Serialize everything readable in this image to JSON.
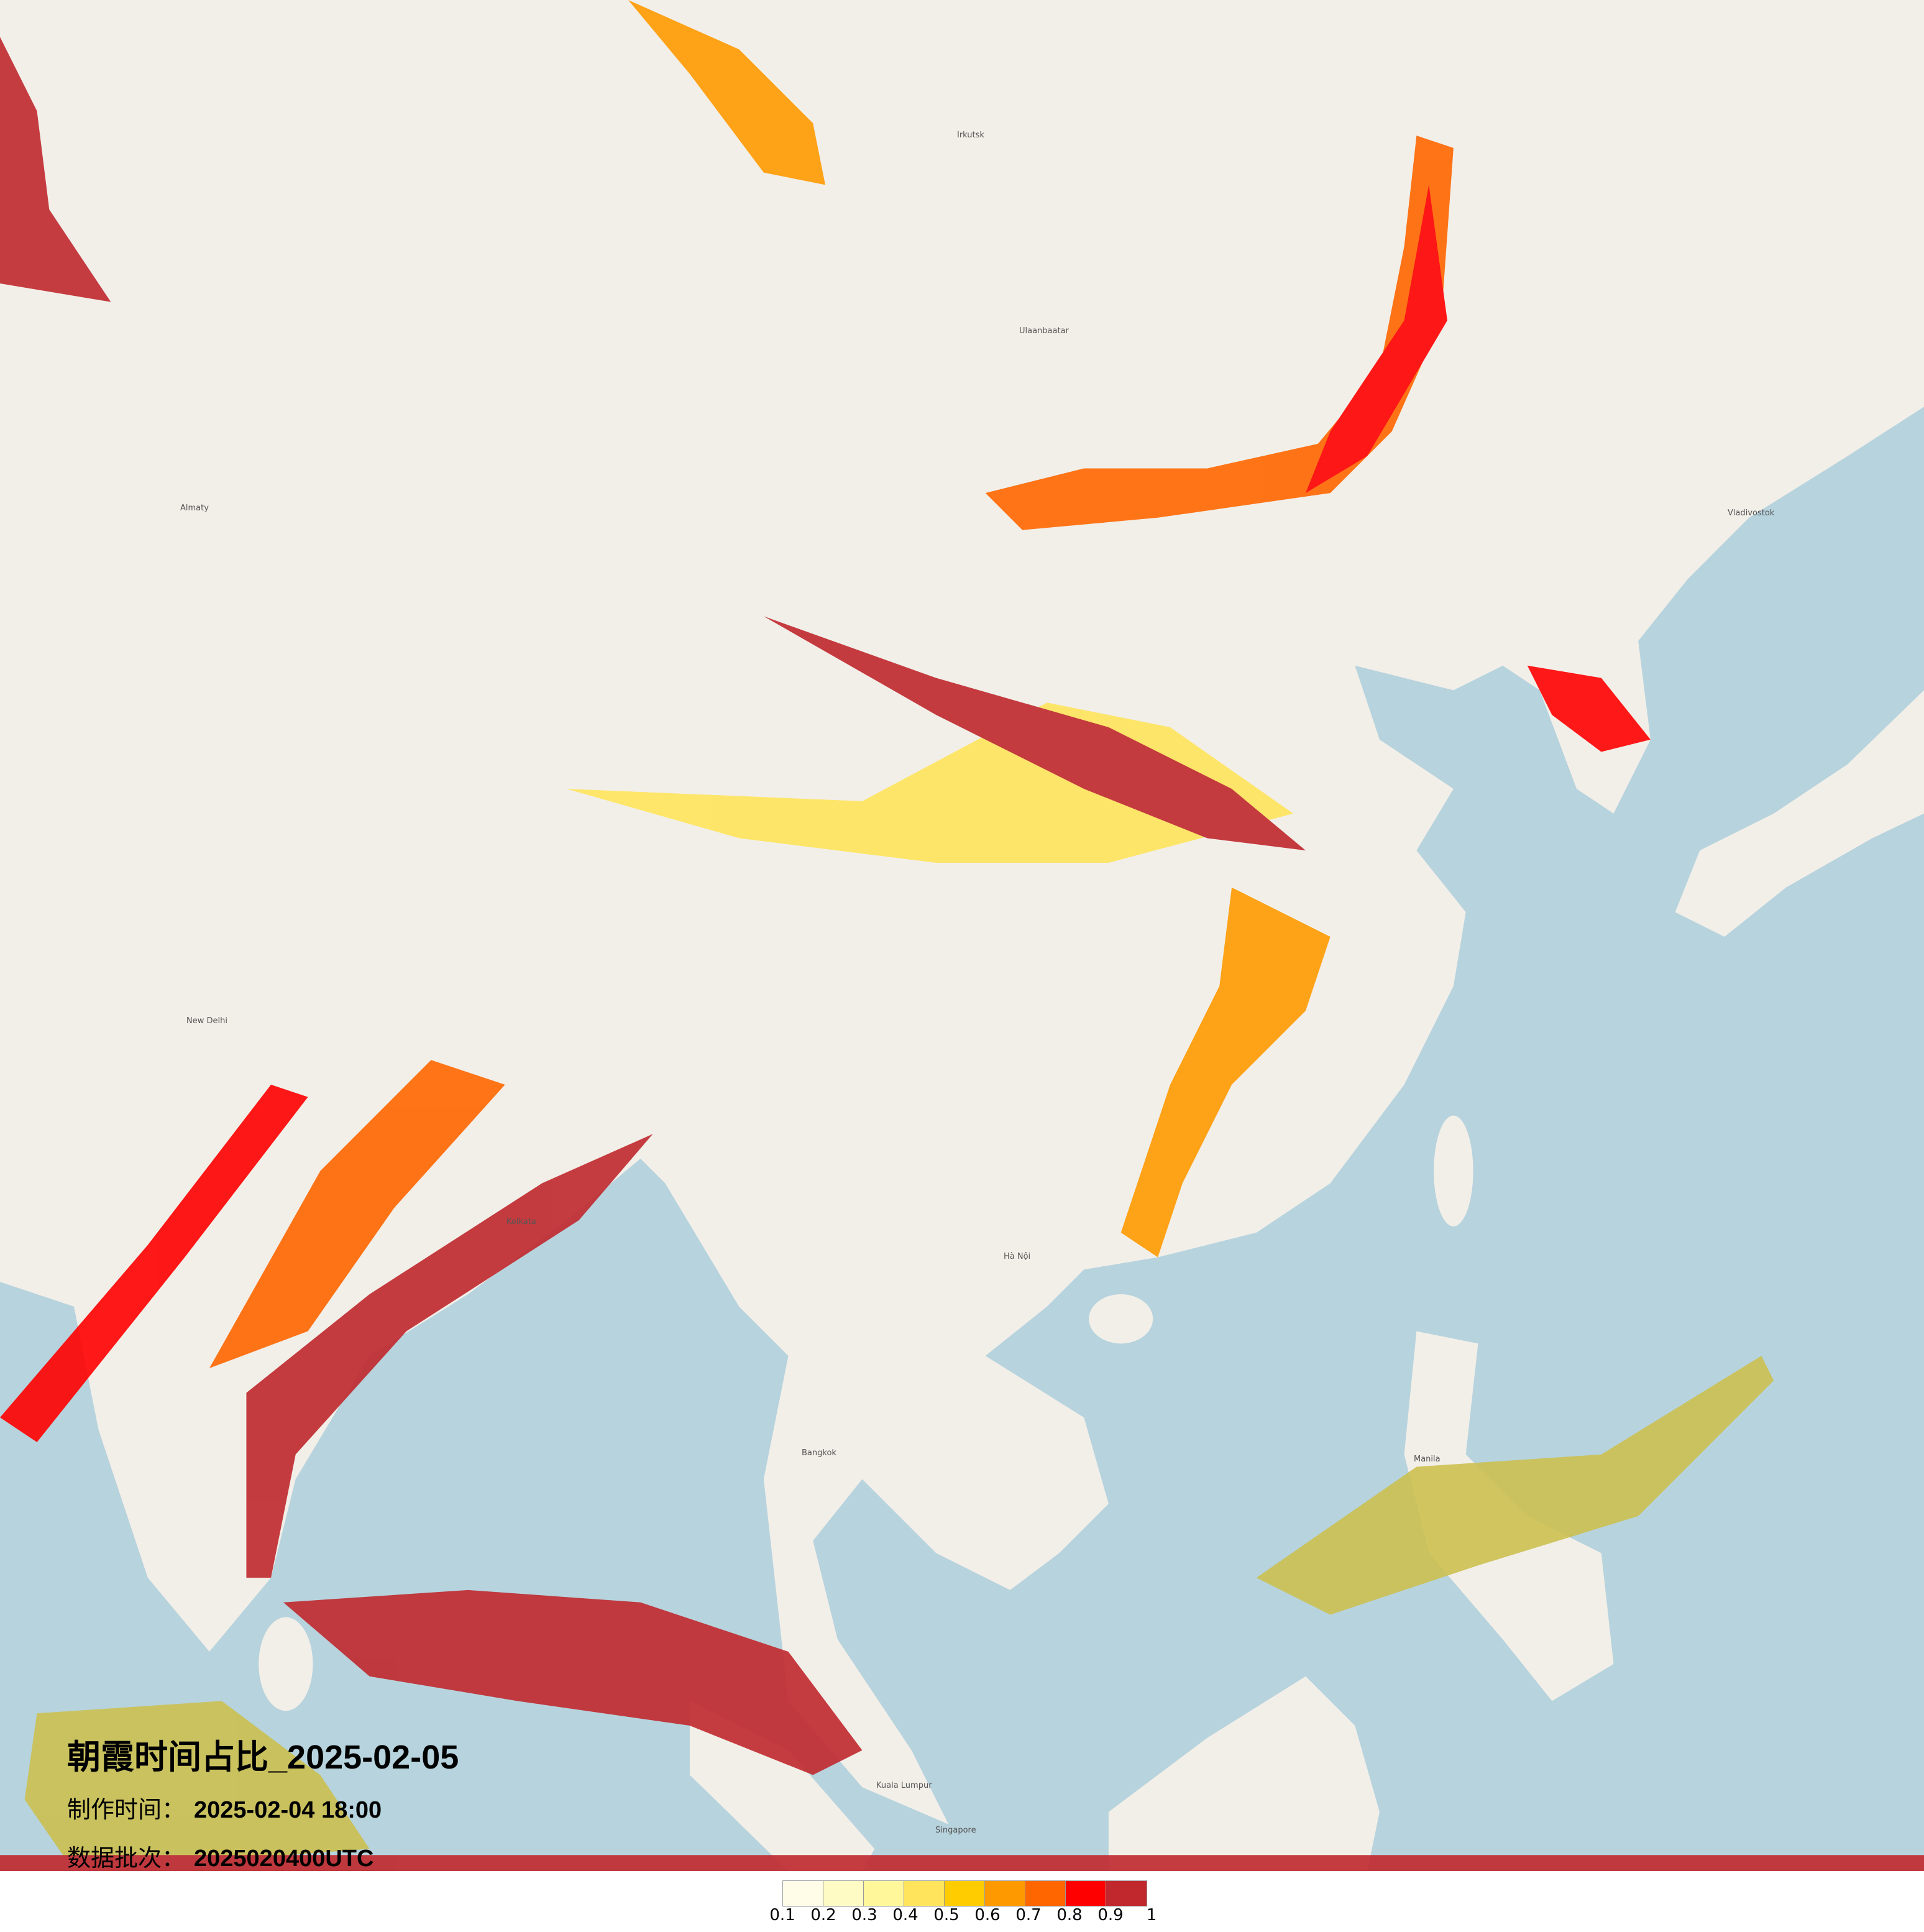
{
  "title": "朝霞时间占比_2025-02-05",
  "production_time": {
    "label": "制作时间：",
    "value": "2025-02-04 18:00"
  },
  "data_batch": {
    "label": "数据批次：",
    "value": "2025020400UTC"
  },
  "legend": {
    "colors": [
      "#fffde8",
      "#fffbc4",
      "#fff799",
      "#ffe45c",
      "#ffcc00",
      "#ff9900",
      "#ff6600",
      "#ff0000",
      "#c0282d"
    ],
    "labels": [
      "0.1",
      "0.2",
      "0.3",
      "0.4",
      "0.5",
      "0.6",
      "0.7",
      "0.8",
      "0.9",
      "1"
    ]
  },
  "map": {
    "land_color": "#f2efe9",
    "sea_color": "#b7d3dd",
    "place_labels": [
      "Ulaanbaatar",
      "Irkutsk",
      "Almaty",
      "New Delhi",
      "Kolkata",
      "Hà Nội",
      "Bangkok",
      "Manila",
      "Kuala Lumpur",
      "Singapore",
      "Vladivostok"
    ]
  }
}
